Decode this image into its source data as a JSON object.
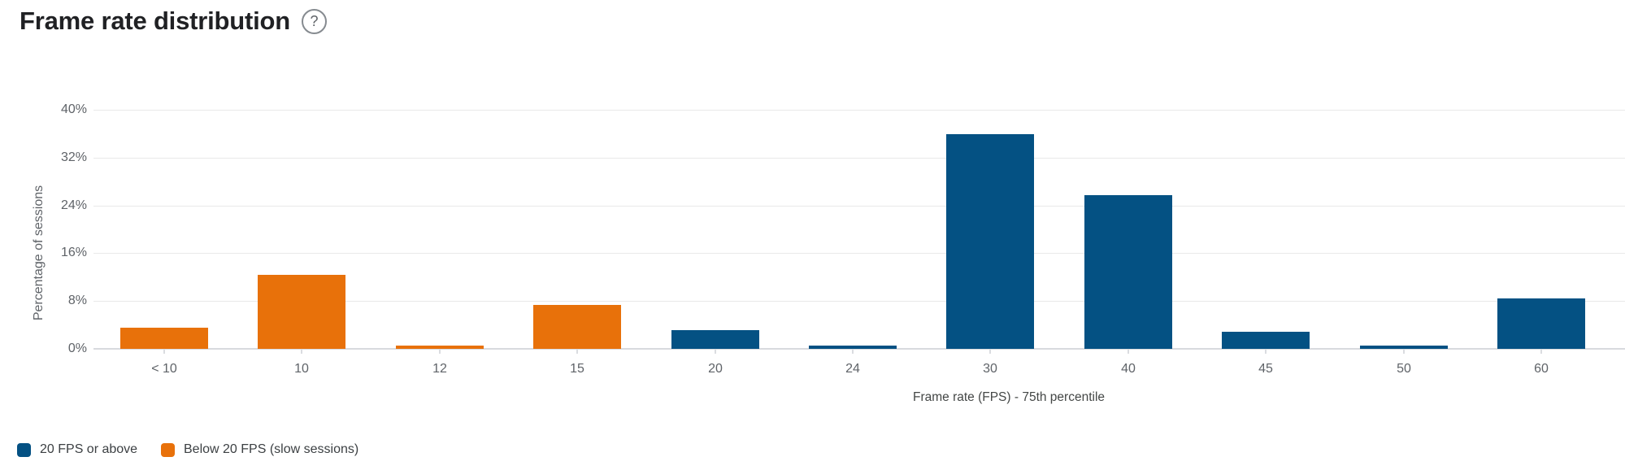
{
  "header": {
    "title": "Frame rate distribution",
    "help_icon": "?"
  },
  "chart_data": {
    "type": "bar",
    "title": "Frame rate distribution",
    "categories": [
      "< 10",
      "10",
      "12",
      "15",
      "20",
      "24",
      "30",
      "40",
      "45",
      "50",
      "60"
    ],
    "series": [
      {
        "name": "20 FPS or above",
        "color": "#045183",
        "values": [
          null,
          null,
          null,
          null,
          3.1,
          0.5,
          35.9,
          25.7,
          2.9,
          0.5,
          8.4
        ]
      },
      {
        "name": "Below 20 FPS (slow sessions)",
        "color": "#e8710a",
        "values": [
          3.5,
          12.4,
          0.6,
          7.3,
          null,
          null,
          null,
          null,
          null,
          null,
          null
        ]
      }
    ],
    "xlabel": "Frame rate (FPS) - 75th percentile",
    "ylabel": "Percentage of sessions",
    "ylim": [
      0,
      40
    ],
    "yticks": [
      {
        "label": "0%",
        "value": 0
      },
      {
        "label": "8%",
        "value": 8
      },
      {
        "label": "16%",
        "value": 16
      },
      {
        "label": "24%",
        "value": 24
      },
      {
        "label": "32%",
        "value": 32
      },
      {
        "label": "40%",
        "value": 40
      }
    ],
    "grid": true,
    "legend_position": "bottom-left"
  },
  "colors": {
    "blue_series": "#045183",
    "orange_series": "#e8710a",
    "gridline": "#e9e9e9",
    "axis_text": "#5f6368",
    "title_text": "#202124"
  }
}
